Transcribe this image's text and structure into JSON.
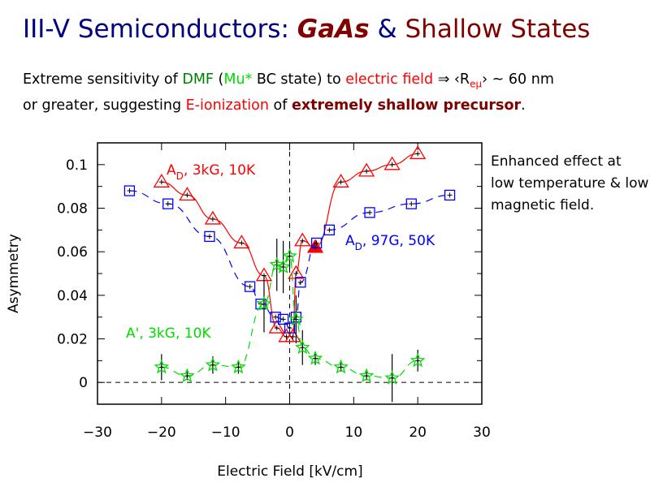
{
  "title": {
    "part1": "III-V Semiconductors:",
    "part2": "GaAs",
    "part3": "&",
    "part4": "Shallow States"
  },
  "subtitle": {
    "l1a": "Extreme sensitivity of ",
    "l1b": "DMF",
    "l1c": " (",
    "l1d": "Mu*",
    "l1e": " BC state) to ",
    "l1f": "electric field",
    "l1g": " ⇒ ‹R",
    "l1h": "eμ",
    "l1i": "› ~ 60 nm",
    "l2a": "or greater, suggesting ",
    "l2b": "E-ionization",
    "l2c": " of ",
    "l2d": "extremely shallow precursor",
    "l2e": "."
  },
  "note": "Enhanced effect at low temperature & low magnetic field.",
  "chart_data": {
    "type": "scatter",
    "xlabel": "Electric Field [kV/cm]",
    "ylabel": "Asymmetry",
    "xlim": [
      -30,
      30
    ],
    "ylim": [
      -0.01,
      0.11
    ],
    "xticks": [
      "−30",
      "−20",
      "−10",
      "0",
      "10",
      "20",
      "30"
    ],
    "yticks": [
      "0",
      "0.02",
      "0.04",
      "0.06",
      "0.08",
      "0.1"
    ],
    "grid": false,
    "series": [
      {
        "name": "A_D, 3kG, 10K",
        "label_main": "A",
        "label_sub": "D",
        "label_rest": ",  3kG,  10K",
        "color": "#ff0000",
        "marker": "triangle",
        "line": "solid",
        "x": [
          -20,
          -16,
          -12,
          -7.5,
          -4,
          -2,
          -0.5,
          0.5,
          1,
          2,
          4,
          8,
          12,
          16,
          20
        ],
        "y": [
          0.092,
          0.086,
          0.075,
          0.064,
          0.049,
          0.025,
          0.021,
          0.021,
          0.05,
          0.065,
          0.062,
          0.092,
          0.097,
          0.1,
          0.105
        ]
      },
      {
        "name": "A_D, 97G, 50K",
        "label_main": "A",
        "label_sub": "D",
        "label_rest": ",  97G,  50K",
        "color": "#0000ff",
        "marker": "square",
        "line": "dashed",
        "x": [
          -25,
          -19,
          -12.5,
          -6.2,
          -4.5,
          -2.2,
          -1,
          0,
          1,
          1.7,
          4.2,
          6.2,
          12.5,
          19,
          25
        ],
        "y": [
          0.088,
          0.082,
          0.067,
          0.044,
          0.036,
          0.03,
          0.029,
          0.025,
          0.03,
          0.046,
          0.064,
          0.07,
          0.078,
          0.082,
          0.086
        ]
      },
      {
        "name": "A', 3kG, 10K",
        "label_main": "A'",
        "label_sub": "",
        "label_rest": ",  3kG,  10K",
        "color": "#00dd00",
        "marker": "star",
        "line": "dashed",
        "x": [
          -20,
          -16,
          -12,
          -8,
          -4,
          -2,
          -1,
          0,
          1,
          2,
          4,
          8,
          12,
          16,
          20
        ],
        "y": [
          0.007,
          0.003,
          0.008,
          0.007,
          0.036,
          0.054,
          0.053,
          0.058,
          0.029,
          0.016,
          0.011,
          0.007,
          0.003,
          0.002,
          0.01
        ],
        "yerr": [
          0.006,
          0.002,
          0.004,
          0.003,
          0.013,
          0.012,
          0.012,
          0.006,
          0.011,
          0.008,
          0.003,
          0.002,
          0.002,
          0.011,
          0.005
        ]
      }
    ]
  }
}
